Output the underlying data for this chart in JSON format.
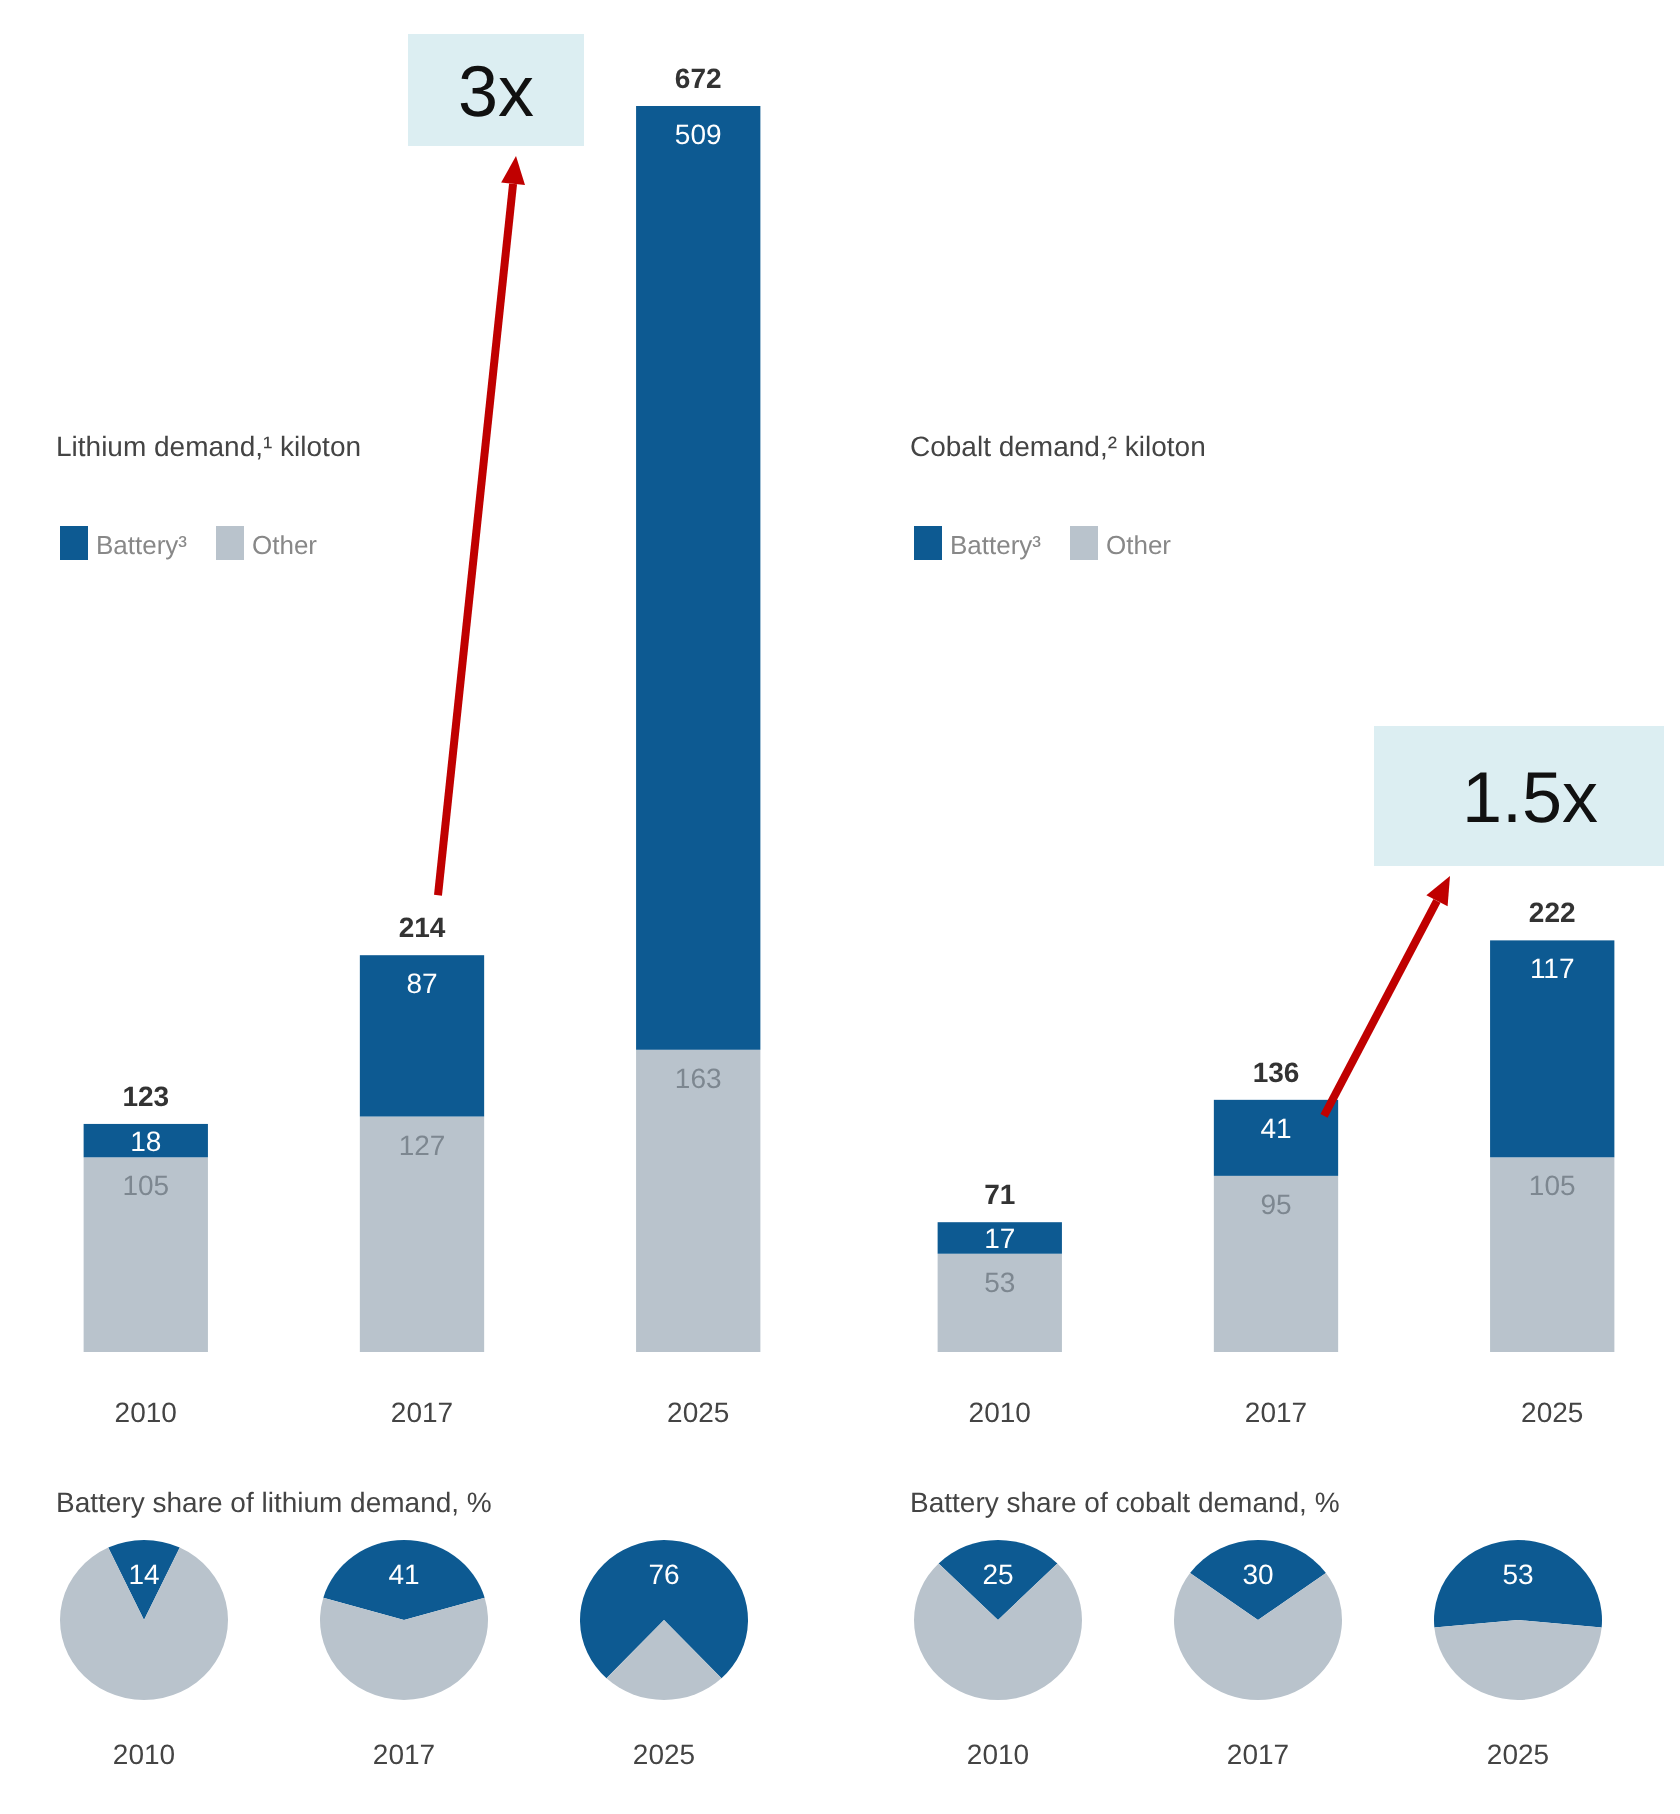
{
  "chart_data": [
    {
      "type": "bar",
      "title": "Lithium demand,¹ kiloton",
      "categories": [
        "2010",
        "2017",
        "2025"
      ],
      "stacked": true,
      "legend": "top left",
      "data_labels": true,
      "tick_labels": "x",
      "totals": [
        "123",
        "214",
        "672"
      ],
      "annotations": [
        "3x"
      ],
      "series": [
        {
          "name": "Other",
          "color": "#b9c3cc",
          "values": [
            105,
            127,
            163
          ]
        },
        {
          "name": "Battery³",
          "color": "#0d5a92",
          "values": [
            18,
            87,
            509
          ]
        }
      ]
    },
    {
      "type": "bar",
      "title": "Cobalt demand,² kiloton",
      "categories": [
        "2010",
        "2017",
        "2025"
      ],
      "stacked": true,
      "legend": "top left",
      "data_labels": true,
      "tick_labels": "x",
      "totals": [
        "71",
        "136",
        "222"
      ],
      "annotations": [
        "1.5x"
      ],
      "series": [
        {
          "name": "Other",
          "color": "#b9c3cc",
          "values": [
            53,
            95,
            105
          ]
        },
        {
          "name": "Battery³",
          "color": "#0d5a92",
          "values": [
            17,
            41,
            117
          ]
        }
      ]
    },
    {
      "type": "pie",
      "title": "Battery share of lithium demand, %",
      "xlabel": "2010",
      "categories": [
        null,
        null
      ],
      "values": [
        14,
        86
      ],
      "colors": [
        "#0d5a92",
        "#b9c3cc"
      ],
      "value_labels": [
        "14",
        null
      ]
    },
    {
      "type": "pie",
      "xlabel": "2017",
      "categories": [
        null,
        null
      ],
      "values": [
        41,
        59
      ],
      "colors": [
        "#0d5a92",
        "#b9c3cc"
      ],
      "value_labels": [
        "41",
        null
      ]
    },
    {
      "type": "pie",
      "xlabel": "2025",
      "categories": [
        null,
        null
      ],
      "values": [
        76,
        24
      ],
      "colors": [
        "#0d5a92",
        "#b9c3cc"
      ],
      "value_labels": [
        "76",
        null
      ]
    },
    {
      "type": "pie",
      "title": "Battery share of cobalt demand, %",
      "xlabel": "2010",
      "categories": [
        null,
        null
      ],
      "values": [
        25,
        75
      ],
      "colors": [
        "#0d5a92",
        "#b9c3cc"
      ],
      "value_labels": [
        "25",
        null
      ]
    },
    {
      "type": "pie",
      "xlabel": "2017",
      "categories": [
        null,
        null
      ],
      "values": [
        30,
        70
      ],
      "colors": [
        "#0d5a92",
        "#b9c3cc"
      ],
      "value_labels": [
        "30",
        null
      ]
    },
    {
      "type": "pie",
      "xlabel": "2025",
      "categories": [
        null,
        null
      ],
      "values": [
        53,
        47
      ],
      "colors": [
        "#0d5a92",
        "#b9c3cc"
      ],
      "value_labels": [
        "53",
        null
      ]
    }
  ]
}
